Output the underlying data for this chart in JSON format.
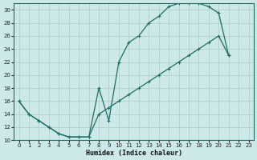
{
  "xlabel": "Humidex (Indice chaleur)",
  "background_color": "#cce8e8",
  "grid_color": "#b0d0d0",
  "line_color": "#1e6e64",
  "xlim": [
    -0.5,
    23.5
  ],
  "ylim": [
    10,
    31
  ],
  "xticks": [
    0,
    1,
    2,
    3,
    4,
    5,
    6,
    7,
    8,
    9,
    10,
    11,
    12,
    13,
    14,
    15,
    16,
    17,
    18,
    19,
    20,
    21,
    22,
    23
  ],
  "yticks": [
    10,
    12,
    14,
    16,
    18,
    20,
    22,
    24,
    26,
    28,
    30
  ],
  "line1_x": [
    0,
    1,
    2,
    3,
    4,
    5,
    6,
    7,
    8,
    9,
    10,
    11,
    12,
    13,
    14,
    15,
    16,
    17,
    18,
    19,
    20,
    21
  ],
  "line1_y": [
    16,
    14,
    13,
    12,
    11,
    10.5,
    10.5,
    10.5,
    18,
    13,
    22,
    25,
    26,
    28,
    29,
    30.5,
    31,
    31,
    31,
    30.5,
    29.5,
    23
  ],
  "line2_x": [
    0,
    1,
    2,
    3,
    4,
    5,
    6,
    7,
    8,
    9,
    10,
    11,
    12,
    13,
    14,
    15,
    16,
    17,
    18,
    19,
    20,
    21
  ],
  "line2_y": [
    16,
    14,
    13,
    12,
    11,
    10.5,
    10.5,
    10.5,
    14,
    15,
    16,
    17,
    18,
    19,
    20,
    21,
    22,
    23,
    24,
    25,
    26,
    23
  ]
}
